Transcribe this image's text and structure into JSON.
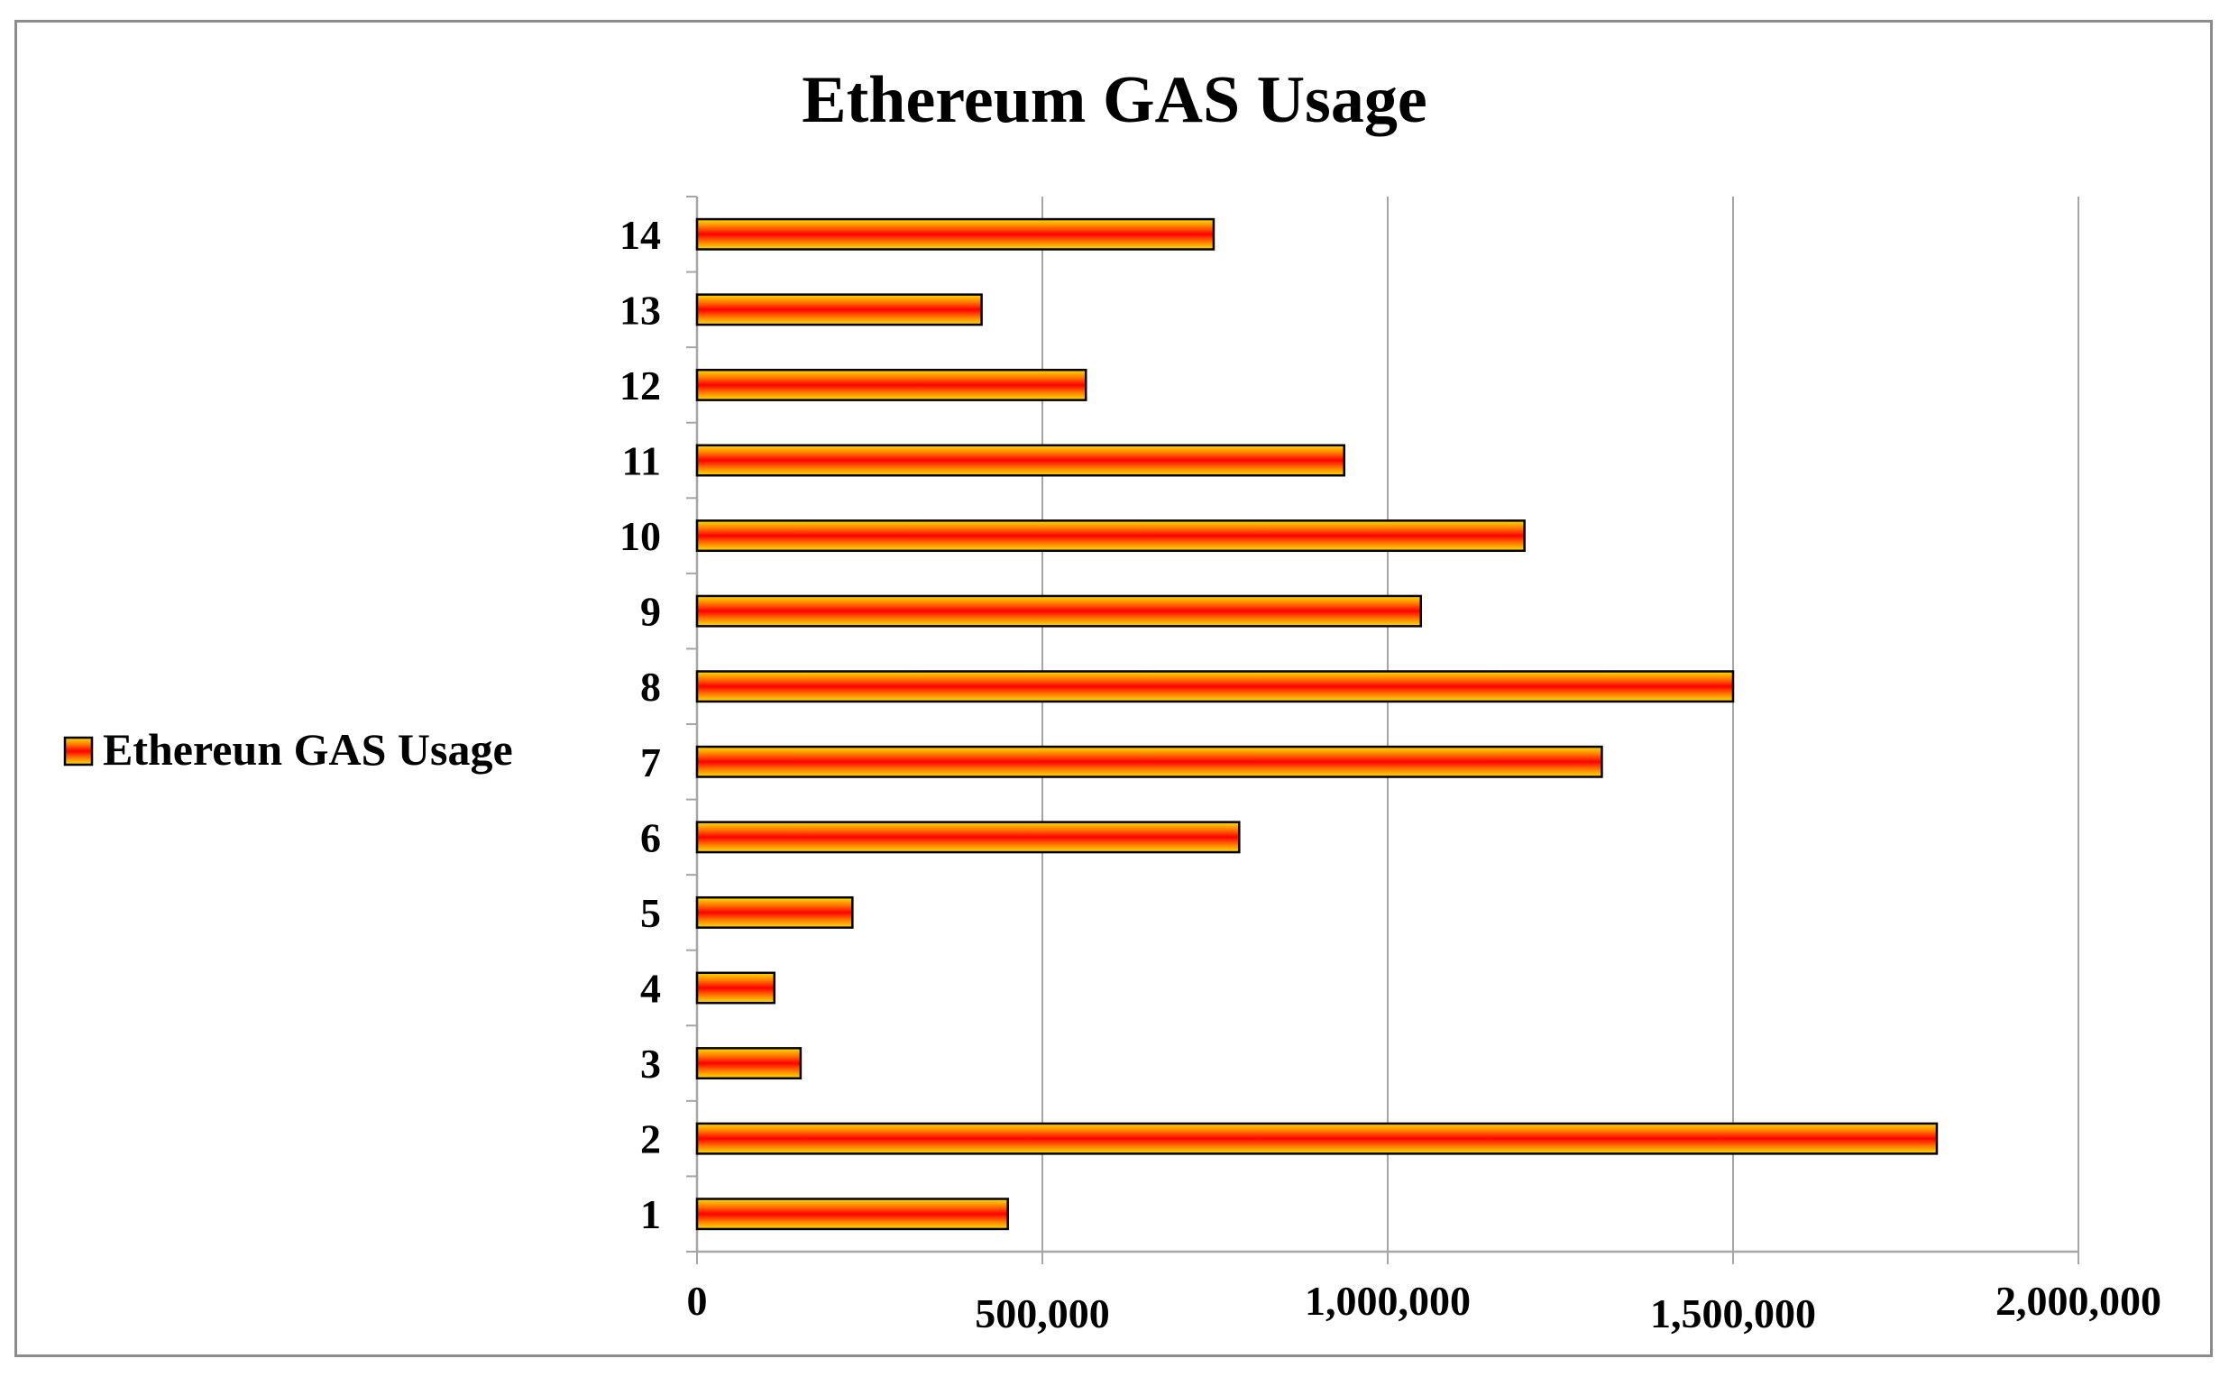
{
  "chart_data": {
    "type": "bar",
    "orientation": "horizontal",
    "title": "Ethereum GAS Usage",
    "xlabel": "",
    "ylabel": "",
    "categories": [
      "1",
      "2",
      "3",
      "4",
      "5",
      "6",
      "7",
      "8",
      "9",
      "10",
      "11",
      "12",
      "13",
      "14"
    ],
    "series": [
      {
        "name": "Ethereun GAS Usage",
        "values": [
          450000,
          1795000,
          150000,
          112000,
          225000,
          785000,
          1310000,
          1500000,
          1048000,
          1198000,
          937000,
          563000,
          412000,
          748000
        ]
      }
    ],
    "xlim": [
      0,
      2000000
    ],
    "xticks": [
      "0",
      "500,000",
      "1,000,000",
      "1,500,000",
      "2,000,000"
    ],
    "grid": "vertical major gridlines",
    "legend_position": "left",
    "colors": {
      "bar_edge": "#ffe000",
      "bar_mid": "#ff7a00",
      "bar_center": "#ff0000",
      "bar_border": "#000000",
      "gridline": "#a6a6a6",
      "axis": "#a6a6a6"
    }
  }
}
